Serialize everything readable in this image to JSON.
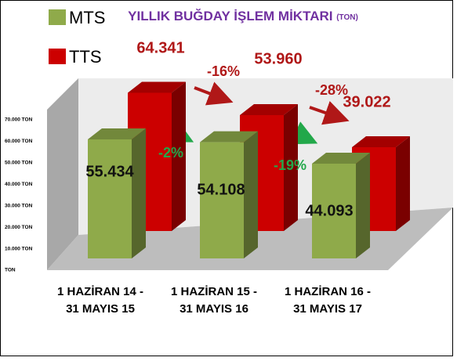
{
  "chart_data": {
    "type": "bar3d",
    "title": "YILLIK BUĞDAY İŞLEM MİKTARI",
    "unit": "(TON)",
    "categories": [
      [
        "1 HAZİRAN 14 -",
        "31 MAYIS 15"
      ],
      [
        "1 HAZİRAN 15 -",
        "31 MAYIS 16"
      ],
      [
        "1 HAZİRAN 16 -",
        "31 MAYIS 17"
      ]
    ],
    "series": [
      {
        "name": "MTS",
        "color": "#8faa4a",
        "values": [
          55434,
          54108,
          44093
        ],
        "value_labels": [
          "55.434",
          "54.108",
          "44.093"
        ]
      },
      {
        "name": "TTS",
        "color": "#cc0000",
        "values": [
          64341,
          53960,
          39022
        ],
        "value_labels": [
          "64.341",
          "53.960",
          "39.022"
        ]
      }
    ],
    "ylim": [
      0,
      70000
    ],
    "yticks": [
      {
        "value": 0,
        "label": "TON"
      },
      {
        "value": 10000,
        "label": "10.000 TON"
      },
      {
        "value": 20000,
        "label": "20.000 TON"
      },
      {
        "value": 30000,
        "label": "30.000 TON"
      },
      {
        "value": 40000,
        "label": "40.000 TON"
      },
      {
        "value": 50000,
        "label": "50.000 TON"
      },
      {
        "value": 60000,
        "label": "60.000 TON"
      },
      {
        "value": 70000,
        "label": "70.000 TON"
      }
    ],
    "annotations": [
      {
        "text": "-2%",
        "color": "#22a84a"
      },
      {
        "text": "-16%",
        "color": "#b01818"
      },
      {
        "text": "-19%",
        "color": "#22a84a"
      },
      {
        "text": "-28%",
        "color": "#b01818"
      }
    ]
  }
}
